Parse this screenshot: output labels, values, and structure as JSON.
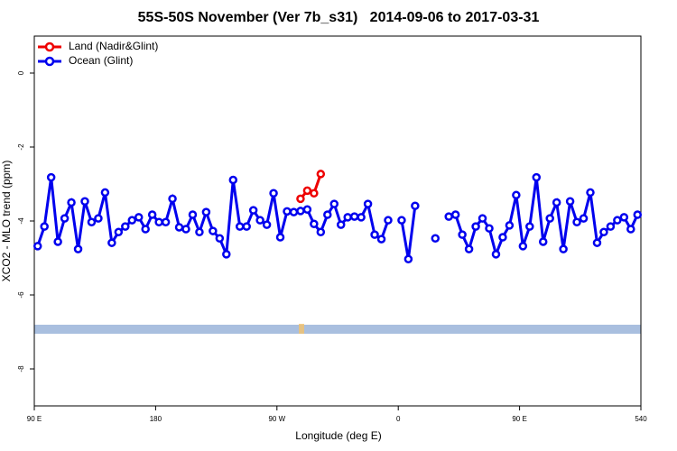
{
  "chart_data": {
    "type": "line",
    "title": "55S-50S November (Ver 7b_s31)   2014-09-06 to 2017-03-31",
    "xlabel": "Longitude (deg E)",
    "ylabel": "XCO2 - MLO trend (ppm)",
    "xlim": [
      90,
      540
    ],
    "ylim": [
      -9,
      1
    ],
    "xticks": [
      {
        "value": 90,
        "label": "90 E"
      },
      180,
      {
        "value": 270,
        "label": "90 W"
      },
      {
        "value": 360,
        "label": "0"
      },
      {
        "value": 450,
        "label": "90 E"
      },
      540
    ],
    "yticks": [
      0,
      -2,
      -4,
      -6,
      -8
    ],
    "legend": "upper left",
    "x": [
      92.5,
      97.5,
      102.5,
      107.5,
      112.5,
      117.5,
      122.5,
      127.5,
      132.5,
      137.5,
      142.5,
      147.5,
      152.5,
      157.5,
      162.5,
      167.5,
      172.5,
      177.5,
      182.5,
      187.5,
      192.5,
      197.5,
      202.5,
      207.5,
      212.5,
      217.5,
      222.5,
      227.5,
      232.5,
      237.5,
      242.5,
      247.5,
      252.5,
      257.5,
      262.5,
      267.5,
      272.5,
      277.5,
      282.5,
      287.5,
      292.5,
      297.5,
      302.5,
      307.5,
      312.5,
      317.5,
      322.5,
      327.5,
      332.5,
      337.5,
      342.5,
      347.5,
      352.5,
      357.5,
      362.5,
      367.5,
      372.5,
      377.5,
      382.5,
      387.5,
      392.5,
      397.5,
      402.5,
      407.5,
      412.5,
      417.5,
      422.5,
      427.5,
      432.5,
      437.5,
      442.5,
      447.5,
      452.5,
      457.5,
      462.5,
      467.5,
      472.5,
      477.5,
      482.5,
      487.5,
      492.5,
      497.5,
      502.5,
      507.5,
      512.5,
      517.5,
      522.5,
      527.5,
      532.5,
      537.5
    ],
    "series": [
      {
        "name": "Land (Nadir&Glint)",
        "color": "#ee0000",
        "values": [
          null,
          null,
          null,
          null,
          null,
          null,
          null,
          null,
          null,
          null,
          null,
          null,
          null,
          null,
          null,
          null,
          null,
          null,
          null,
          null,
          null,
          null,
          null,
          null,
          null,
          null,
          null,
          null,
          null,
          null,
          null,
          null,
          null,
          null,
          null,
          null,
          null,
          null,
          null,
          -3.4,
          -3.18,
          -3.25,
          -2.73,
          null,
          null,
          null,
          null,
          null,
          null,
          null,
          null,
          null,
          null,
          null,
          null,
          null,
          null,
          null,
          null,
          null,
          null,
          null,
          null,
          null,
          null,
          null,
          null,
          null,
          null,
          null,
          null,
          null,
          null,
          null,
          null,
          null,
          null,
          null,
          null,
          null,
          null,
          null,
          null,
          null,
          null,
          null,
          null,
          null,
          null,
          null
        ]
      },
      {
        "name": "Ocean (Glint)",
        "color": "#0000ee",
        "values": [
          -4.68,
          -4.15,
          -2.82,
          -4.56,
          -3.93,
          -3.5,
          -4.76,
          -3.47,
          -4.03,
          -3.93,
          -3.23,
          -4.59,
          -4.3,
          -4.15,
          -3.98,
          -3.9,
          -4.22,
          -3.83,
          -4.03,
          -4.03,
          -3.4,
          -4.17,
          -4.22,
          -3.83,
          -4.3,
          -3.76,
          -4.27,
          -4.47,
          -4.9,
          -2.89,
          -4.15,
          -4.15,
          -3.71,
          -3.98,
          -4.1,
          -3.25,
          -4.44,
          -3.74,
          -3.76,
          -3.73,
          -3.69,
          -4.08,
          -4.3,
          -3.83,
          -3.54,
          -4.1,
          -3.9,
          -3.88,
          -3.9,
          -3.54,
          -4.37,
          -4.49,
          -3.98,
          null,
          -3.98,
          -5.03,
          -3.59,
          null,
          null,
          -4.47,
          null,
          -3.88,
          -3.83,
          -4.37,
          -4.76,
          -4.15,
          -3.93,
          -4.2,
          -4.9,
          -4.44,
          -4.12,
          -3.3,
          -4.68,
          -4.15,
          -2.82,
          -4.56,
          -3.93,
          -3.5,
          -4.76,
          -3.47,
          -4.03,
          -3.93,
          -3.23,
          -4.59,
          -4.3,
          -4.15,
          -3.98,
          -3.9,
          -4.22,
          -3.83
        ]
      }
    ]
  }
}
